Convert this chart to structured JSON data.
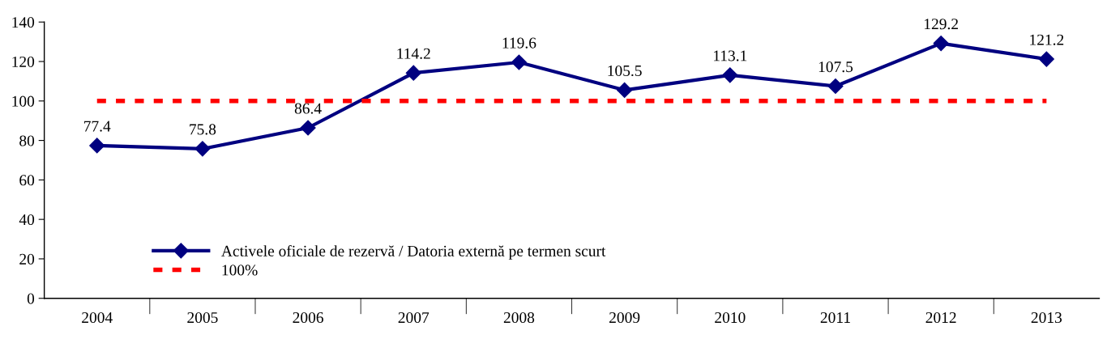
{
  "chart_data": {
    "type": "line",
    "categories": [
      "2004",
      "2005",
      "2006",
      "2007",
      "2008",
      "2009",
      "2010",
      "2011",
      "2012",
      "2013"
    ],
    "series": [
      {
        "name": "Activele oficiale de rezervă / Datoria externă pe termen scurt",
        "color": "#000080",
        "values": [
          77.4,
          75.8,
          86.4,
          114.2,
          119.6,
          105.5,
          113.1,
          107.5,
          129.2,
          121.2
        ],
        "marker": "diamond",
        "line_style": "solid",
        "data_labels": true
      },
      {
        "name": "100%",
        "color": "#ff0000",
        "values": [
          100,
          100,
          100,
          100,
          100,
          100,
          100,
          100,
          100,
          100
        ],
        "marker": "none",
        "line_style": "dashed"
      }
    ],
    "ylim": [
      0,
      140
    ],
    "yticks": [
      0,
      20,
      40,
      60,
      80,
      100,
      120,
      140
    ],
    "grid": false,
    "legend": "bottom left"
  }
}
